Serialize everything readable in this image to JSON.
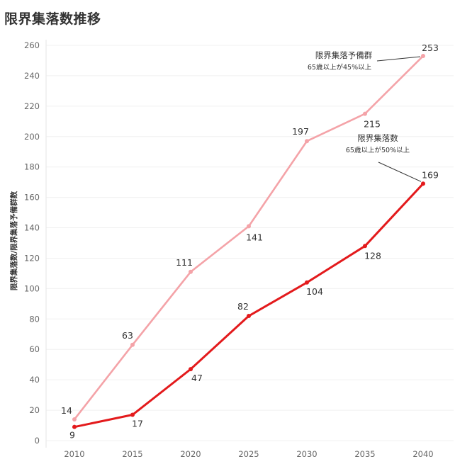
{
  "title": "限界集落数推移",
  "chart_data": {
    "type": "line",
    "title": "限界集落数推移",
    "xlabel": "",
    "ylabel": "限界集落数/限界集落予備群数",
    "x": [
      2010,
      2015,
      2020,
      2025,
      2030,
      2035,
      2040
    ],
    "ylim": [
      0,
      260
    ],
    "yticks": [
      0,
      20,
      40,
      60,
      80,
      100,
      120,
      140,
      160,
      180,
      200,
      220,
      240,
      260
    ],
    "grid": true,
    "series": [
      {
        "name": "限界集落予備群",
        "note": "65歳以上が45%以上",
        "color": "#f4a3a8",
        "values": [
          14,
          63,
          111,
          141,
          197,
          215,
          253
        ]
      },
      {
        "name": "限界集落数",
        "note": "65歳以上が50%以上",
        "color": "#e31a1c",
        "values": [
          9,
          17,
          47,
          82,
          104,
          128,
          169
        ]
      }
    ]
  }
}
